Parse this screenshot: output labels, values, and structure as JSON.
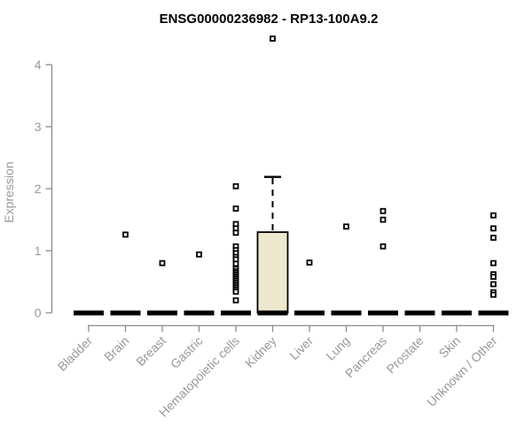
{
  "chart_data": {
    "type": "boxplot",
    "title": "ENSG00000236982 - RP13-100A9.2",
    "ylabel": "Expression",
    "xlabel": "",
    "ylim": [
      0,
      4
    ],
    "yticks": [
      0,
      1,
      2,
      3,
      4
    ],
    "grid": false,
    "legend": "none",
    "categories": [
      "Bladder",
      "Brain",
      "Breast",
      "Gastric",
      "Hematopoietic cells",
      "Kidney",
      "Liver",
      "Lung",
      "Pancreas",
      "Prostate",
      "Skin",
      "Unknown / Other"
    ],
    "series": [
      {
        "category": "Bladder",
        "median": 0,
        "q1": 0,
        "q3": 0,
        "whisker_high": 0,
        "points": []
      },
      {
        "category": "Brain",
        "median": 0,
        "q1": 0,
        "q3": 0,
        "whisker_high": 0,
        "points": [
          1.26
        ]
      },
      {
        "category": "Breast",
        "median": 0,
        "q1": 0,
        "q3": 0,
        "whisker_high": 0,
        "points": [
          0.8
        ]
      },
      {
        "category": "Gastric",
        "median": 0,
        "q1": 0,
        "q3": 0,
        "whisker_high": 0,
        "points": [
          0.94
        ]
      },
      {
        "category": "Hematopoietic cells",
        "median": 0,
        "q1": 0,
        "q3": 0,
        "whisker_high": 0,
        "points": [
          2.04,
          1.68,
          1.43,
          1.36,
          1.29,
          1.07,
          1.01,
          0.96,
          0.9,
          0.86,
          0.79,
          0.71,
          0.67,
          0.64,
          0.61,
          0.58,
          0.55,
          0.52,
          0.49,
          0.46,
          0.43,
          0.4,
          0.37,
          0.34,
          0.2
        ]
      },
      {
        "category": "Kidney",
        "median": 0,
        "q1": 0,
        "q3": 1.3,
        "whisker_high": 2.19,
        "points": [
          4.42
        ]
      },
      {
        "category": "Liver",
        "median": 0,
        "q1": 0,
        "q3": 0,
        "whisker_high": 0,
        "points": [
          0.81
        ]
      },
      {
        "category": "Lung",
        "median": 0,
        "q1": 0,
        "q3": 0,
        "whisker_high": 0,
        "points": [
          1.39
        ]
      },
      {
        "category": "Pancreas",
        "median": 0,
        "q1": 0,
        "q3": 0,
        "whisker_high": 0,
        "points": [
          1.64,
          1.5,
          1.07
        ]
      },
      {
        "category": "Prostate",
        "median": 0,
        "q1": 0,
        "q3": 0,
        "whisker_high": 0,
        "points": []
      },
      {
        "category": "Skin",
        "median": 0,
        "q1": 0,
        "q3": 0,
        "whisker_high": 0,
        "points": []
      },
      {
        "category": "Unknown / Other",
        "median": 0,
        "q1": 0,
        "q3": 0,
        "whisker_high": 0,
        "points": [
          1.57,
          1.36,
          1.21,
          0.8,
          0.62,
          0.58,
          0.46,
          0.33,
          0.29
        ]
      }
    ],
    "colors": {
      "box_fill": "#EDE8CD",
      "box_stroke": "#000000",
      "median_bar": "#000000",
      "point_stroke": "#000000",
      "point_fill": "#ffffff",
      "axis_line": "#8c8c8c",
      "tick_label": "#989898",
      "title": "#000000"
    }
  }
}
